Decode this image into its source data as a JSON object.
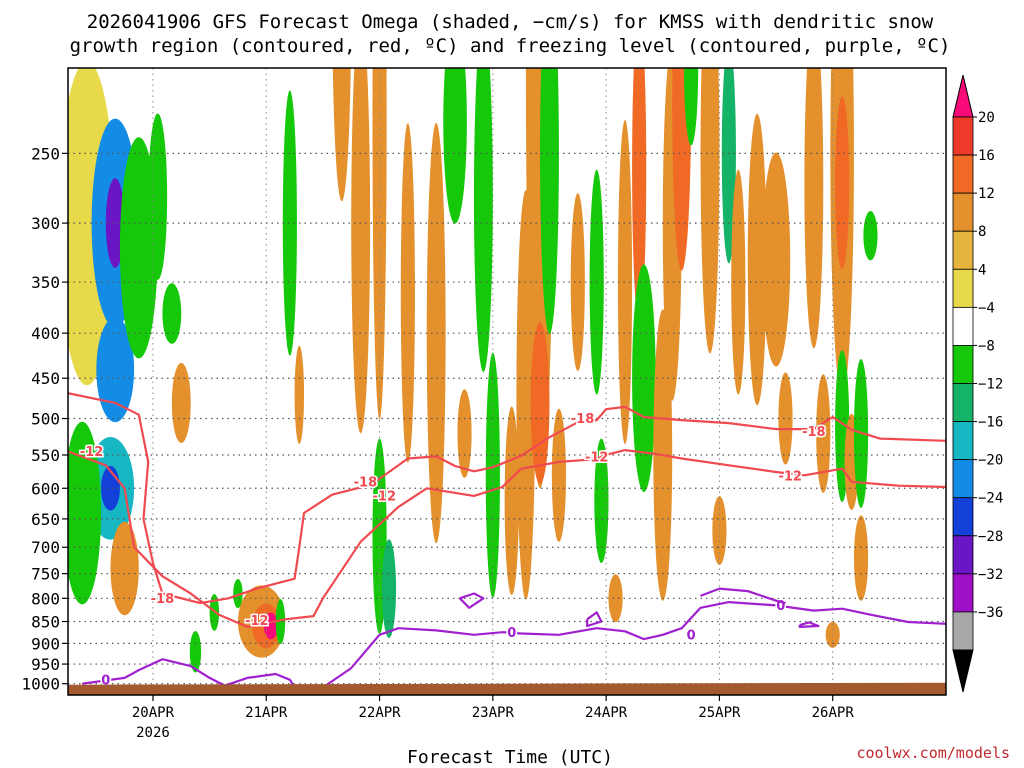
{
  "chart_data": {
    "type": "heatmap",
    "title_line1": "2026041906 GFS Forecast Omega (shaded, −cm/s) for KMSS with dendritic snow",
    "title_line2": "growth region (contoured, red, ºC) and freezing level (contoured, purple, ºC)",
    "xlabel": "Forecast Time (UTC)",
    "ylabel": "",
    "credit": "coolwx.com/models",
    "x_range_hours": [
      0,
      186
    ],
    "x_ticks": [
      {
        "label": "20APR",
        "sublabel": "2026",
        "hour": 18
      },
      {
        "label": "21APR",
        "hour": 42
      },
      {
        "label": "22APR",
        "hour": 66
      },
      {
        "label": "23APR",
        "hour": 90
      },
      {
        "label": "24APR",
        "hour": 114
      },
      {
        "label": "25APR",
        "hour": 138
      },
      {
        "label": "26APR",
        "hour": 162
      }
    ],
    "y_axis": {
      "units": "hPa",
      "top": 200,
      "bottom": 1030,
      "scale": "log",
      "ticks": [
        250,
        300,
        350,
        400,
        450,
        500,
        550,
        600,
        650,
        700,
        750,
        800,
        850,
        900,
        950,
        1000
      ]
    },
    "grid": true,
    "colorbar": {
      "labels": [
        "20",
        "16",
        "12",
        "8",
        "4",
        "−4",
        "−8",
        "−12",
        "−16",
        "−20",
        "−24",
        "−28",
        "−32",
        "−36"
      ],
      "colors": [
        "#fa0a78",
        "#ee3a2a",
        "#f06a26",
        "#e4912d",
        "#e4b43c",
        "#e8d94a",
        "#ffffff",
        "#15c80a",
        "#14b368",
        "#16b6c2",
        "#138ce6",
        "#1240d8",
        "#6a16c4",
        "#a010c8",
        "#a8a8a8",
        "#000000"
      ]
    },
    "red_contours": [
      {
        "label": "-18",
        "points": [
          [
            0,
            468
          ],
          [
            10,
            480
          ],
          [
            15,
            495
          ],
          [
            17,
            560
          ],
          [
            16,
            650
          ],
          [
            18,
            730
          ],
          [
            20,
            790
          ],
          [
            28,
            810
          ],
          [
            34,
            800
          ],
          [
            40,
            780
          ],
          [
            48,
            760
          ],
          [
            49,
            700
          ],
          [
            50,
            640
          ],
          [
            56,
            610
          ],
          [
            64,
            595
          ],
          [
            68,
            575
          ],
          [
            72,
            555
          ],
          [
            78,
            552
          ],
          [
            82,
            566
          ],
          [
            86,
            574
          ],
          [
            90,
            568
          ],
          [
            96,
            551
          ],
          [
            102,
            525
          ],
          [
            108,
            505
          ],
          [
            112,
            502
          ],
          [
            114,
            488
          ],
          [
            118,
            485
          ],
          [
            122,
            498
          ],
          [
            130,
            502
          ],
          [
            140,
            506
          ],
          [
            150,
            514
          ],
          [
            158,
            514
          ],
          [
            162,
            498
          ],
          [
            166,
            515
          ],
          [
            172,
            527
          ],
          [
            186,
            530
          ]
        ],
        "labels_at": [
          [
            20,
            800
          ],
          [
            63,
            590
          ],
          [
            109,
            500
          ],
          [
            158,
            517
          ]
        ]
      },
      {
        "label": "-12",
        "points": [
          [
            0,
            545
          ],
          [
            8,
            565
          ],
          [
            12,
            600
          ],
          [
            14,
            700
          ],
          [
            20,
            755
          ],
          [
            26,
            790
          ],
          [
            32,
            835
          ],
          [
            38,
            862
          ],
          [
            46,
            845
          ],
          [
            52,
            838
          ],
          [
            54,
            800
          ],
          [
            62,
            690
          ],
          [
            70,
            630
          ],
          [
            76,
            600
          ],
          [
            86,
            612
          ],
          [
            92,
            598
          ],
          [
            96,
            570
          ],
          [
            104,
            560
          ],
          [
            110,
            557
          ],
          [
            118,
            543
          ],
          [
            124,
            548
          ],
          [
            130,
            555
          ],
          [
            140,
            565
          ],
          [
            150,
            575
          ],
          [
            156,
            580
          ],
          [
            164,
            570
          ],
          [
            166,
            590
          ],
          [
            176,
            596
          ],
          [
            186,
            598
          ]
        ],
        "labels_at": [
          [
            5,
            545
          ],
          [
            40,
            848
          ],
          [
            67,
            612
          ],
          [
            112,
            553
          ],
          [
            153,
            581
          ]
        ]
      }
    ],
    "purple_contours": [
      {
        "label": "0",
        "points": [
          [
            3,
            1000
          ],
          [
            12,
            985
          ],
          [
            15,
            965
          ],
          [
            20,
            938
          ],
          [
            26,
            955
          ],
          [
            30,
            985
          ],
          [
            34,
            1010
          ]
        ],
        "labels_at": [
          [
            8,
            990
          ]
        ]
      },
      {
        "label": "0",
        "points": [
          [
            32,
            1010
          ],
          [
            38,
            985
          ],
          [
            44,
            975
          ],
          [
            47,
            990
          ],
          [
            48,
            1010
          ]
        ],
        "labels_at": []
      },
      {
        "label": "0",
        "points": [
          [
            54,
            1010
          ],
          [
            60,
            960
          ],
          [
            66,
            880
          ],
          [
            70,
            865
          ],
          [
            78,
            870
          ],
          [
            86,
            880
          ],
          [
            92,
            874
          ],
          [
            96,
            877
          ],
          [
            104,
            880
          ],
          [
            112,
            865
          ],
          [
            118,
            872
          ],
          [
            122,
            890
          ],
          [
            126,
            880
          ],
          [
            130,
            865
          ],
          [
            134,
            820
          ],
          [
            140,
            808
          ],
          [
            150,
            815
          ],
          [
            158,
            826
          ],
          [
            164,
            822
          ],
          [
            170,
            835
          ],
          [
            178,
            851
          ],
          [
            186,
            855
          ]
        ],
        "labels_at": [
          [
            94,
            875
          ],
          [
            132,
            880
          ],
          [
            151,
            815
          ]
        ]
      },
      {
        "label": "0",
        "points": [
          [
            134,
            795
          ],
          [
            138,
            780
          ],
          [
            144,
            785
          ],
          [
            150,
            805
          ],
          [
            152,
            810
          ]
        ],
        "labels_at": []
      },
      {
        "label": "0",
        "points": [
          [
            83,
            800
          ],
          [
            86,
            790
          ],
          [
            88,
            800
          ],
          [
            85,
            820
          ],
          [
            83,
            800
          ]
        ],
        "labels_at": []
      },
      {
        "label": "0",
        "points": [
          [
            110,
            845
          ],
          [
            112,
            830
          ],
          [
            113,
            850
          ],
          [
            110,
            860
          ],
          [
            110,
            845
          ]
        ],
        "labels_at": []
      },
      {
        "label": "0",
        "points": [
          [
            155,
            858
          ],
          [
            157,
            852
          ],
          [
            159,
            860
          ],
          [
            155,
            862
          ],
          [
            155,
            858
          ]
        ],
        "labels_at": []
      }
    ],
    "omega_blobs": [
      {
        "x": 4,
        "y": 300,
        "rx": 6,
        "ry": 120,
        "level": 6
      },
      {
        "x": 10,
        "y": 300,
        "rx": 5,
        "ry": 80,
        "level": 10
      },
      {
        "x": 10,
        "y": 300,
        "rx": 2,
        "ry": 35,
        "level": 12
      },
      {
        "x": 10,
        "y": 440,
        "rx": 4,
        "ry": 60,
        "level": 10
      },
      {
        "x": 9,
        "y": 600,
        "rx": 5,
        "ry": 80,
        "level": 9
      },
      {
        "x": 9,
        "y": 600,
        "rx": 2,
        "ry": 35,
        "level": 11
      },
      {
        "x": 3,
        "y": 640,
        "rx": 4,
        "ry": 150,
        "level": 7
      },
      {
        "x": 15,
        "y": 320,
        "rx": 4,
        "ry": 90,
        "level": 7
      },
      {
        "x": 19,
        "y": 280,
        "rx": 2,
        "ry": 60,
        "level": 7
      },
      {
        "x": 22,
        "y": 380,
        "rx": 2,
        "ry": 30,
        "level": 7
      },
      {
        "x": 24,
        "y": 480,
        "rx": 2,
        "ry": 50,
        "level": 4
      },
      {
        "x": 12,
        "y": 740,
        "rx": 3,
        "ry": 90,
        "level": 4
      },
      {
        "x": 41,
        "y": 850,
        "rx": 5,
        "ry": 80,
        "level": 4
      },
      {
        "x": 42,
        "y": 860,
        "rx": 3,
        "ry": 50,
        "level": 3
      },
      {
        "x": 43,
        "y": 860,
        "rx": 1.5,
        "ry": 30,
        "level": 1
      },
      {
        "x": 45,
        "y": 850,
        "rx": 1,
        "ry": 50,
        "level": 7
      },
      {
        "x": 27,
        "y": 920,
        "rx": 1.2,
        "ry": 50,
        "level": 7
      },
      {
        "x": 31,
        "y": 830,
        "rx": 1,
        "ry": 40,
        "level": 7
      },
      {
        "x": 36,
        "y": 790,
        "rx": 1,
        "ry": 30,
        "level": 7
      },
      {
        "x": 47,
        "y": 300,
        "rx": 1.5,
        "ry": 100,
        "level": 7
      },
      {
        "x": 49,
        "y": 470,
        "rx": 1,
        "ry": 60,
        "level": 4
      },
      {
        "x": 58,
        "y": 170,
        "rx": 2,
        "ry": 80,
        "level": 4
      },
      {
        "x": 62,
        "y": 300,
        "rx": 2,
        "ry": 150,
        "level": 4
      },
      {
        "x": 66,
        "y": 230,
        "rx": 1.5,
        "ry": 150,
        "level": 4
      },
      {
        "x": 66,
        "y": 680,
        "rx": 1.5,
        "ry": 170,
        "level": 7
      },
      {
        "x": 68,
        "y": 780,
        "rx": 1.5,
        "ry": 100,
        "level": 8
      },
      {
        "x": 72,
        "y": 360,
        "rx": 1.5,
        "ry": 150,
        "level": 4
      },
      {
        "x": 78,
        "y": 400,
        "rx": 2,
        "ry": 200,
        "level": 4
      },
      {
        "x": 82,
        "y": 230,
        "rx": 2.5,
        "ry": 60,
        "level": 7
      },
      {
        "x": 84,
        "y": 520,
        "rx": 1.5,
        "ry": 60,
        "level": 4
      },
      {
        "x": 88,
        "y": 280,
        "rx": 2,
        "ry": 120,
        "level": 7
      },
      {
        "x": 90,
        "y": 580,
        "rx": 1.5,
        "ry": 180,
        "level": 7
      },
      {
        "x": 94,
        "y": 620,
        "rx": 1.5,
        "ry": 150,
        "level": 4
      },
      {
        "x": 97,
        "y": 470,
        "rx": 2,
        "ry": 230,
        "level": 4
      },
      {
        "x": 100,
        "y": 200,
        "rx": 3,
        "ry": 160,
        "level": 4
      },
      {
        "x": 100,
        "y": 480,
        "rx": 2,
        "ry": 100,
        "level": 3
      },
      {
        "x": 102,
        "y": 250,
        "rx": 2,
        "ry": 110,
        "level": 7
      },
      {
        "x": 104,
        "y": 580,
        "rx": 1.5,
        "ry": 100,
        "level": 4
      },
      {
        "x": 108,
        "y": 350,
        "rx": 1.5,
        "ry": 80,
        "level": 4
      },
      {
        "x": 112,
        "y": 350,
        "rx": 1.5,
        "ry": 100,
        "level": 7
      },
      {
        "x": 113,
        "y": 620,
        "rx": 1.5,
        "ry": 100,
        "level": 7
      },
      {
        "x": 116,
        "y": 800,
        "rx": 1.5,
        "ry": 50,
        "level": 4
      },
      {
        "x": 118,
        "y": 350,
        "rx": 1.5,
        "ry": 140,
        "level": 4
      },
      {
        "x": 121,
        "y": 260,
        "rx": 1.5,
        "ry": 100,
        "level": 3
      },
      {
        "x": 122,
        "y": 450,
        "rx": 2.5,
        "ry": 130,
        "level": 7
      },
      {
        "x": 126,
        "y": 550,
        "rx": 2,
        "ry": 200,
        "level": 4
      },
      {
        "x": 128,
        "y": 300,
        "rx": 2,
        "ry": 130,
        "level": 4
      },
      {
        "x": 130,
        "y": 220,
        "rx": 2,
        "ry": 90,
        "level": 3
      },
      {
        "x": 132,
        "y": 200,
        "rx": 1.5,
        "ry": 40,
        "level": 7
      },
      {
        "x": 136,
        "y": 250,
        "rx": 2,
        "ry": 120,
        "level": 4
      },
      {
        "x": 138,
        "y": 670,
        "rx": 1.5,
        "ry": 60,
        "level": 4
      },
      {
        "x": 140,
        "y": 250,
        "rx": 1.5,
        "ry": 70,
        "level": 8
      },
      {
        "x": 142,
        "y": 350,
        "rx": 1.5,
        "ry": 100,
        "level": 4
      },
      {
        "x": 146,
        "y": 330,
        "rx": 2,
        "ry": 120,
        "level": 4
      },
      {
        "x": 150,
        "y": 330,
        "rx": 3,
        "ry": 90,
        "level": 4
      },
      {
        "x": 152,
        "y": 500,
        "rx": 1.5,
        "ry": 60,
        "level": 4
      },
      {
        "x": 158,
        "y": 270,
        "rx": 2,
        "ry": 110,
        "level": 4
      },
      {
        "x": 160,
        "y": 520,
        "rx": 1.5,
        "ry": 80,
        "level": 4
      },
      {
        "x": 164,
        "y": 250,
        "rx": 2.5,
        "ry": 140,
        "level": 4
      },
      {
        "x": 164,
        "y": 270,
        "rx": 1.5,
        "ry": 60,
        "level": 3
      },
      {
        "x": 164,
        "y": 510,
        "rx": 1.5,
        "ry": 100,
        "level": 7
      },
      {
        "x": 166,
        "y": 560,
        "rx": 1.5,
        "ry": 70,
        "level": 4
      },
      {
        "x": 168,
        "y": 520,
        "rx": 1.5,
        "ry": 100,
        "level": 7
      },
      {
        "x": 168,
        "y": 720,
        "rx": 1.5,
        "ry": 80,
        "level": 4
      },
      {
        "x": 170,
        "y": 310,
        "rx": 1.5,
        "ry": 20,
        "level": 7
      },
      {
        "x": 162,
        "y": 880,
        "rx": 1.5,
        "ry": 30,
        "level": 4
      }
    ]
  },
  "colors": {
    "omega_levels": [
      "#ffffff",
      "#fa0a78",
      "#ee3a2a",
      "#f06a26",
      "#e4912d",
      "#e4b43c",
      "#e8d94a",
      "#15c80a",
      "#14b368",
      "#16b6c2",
      "#138ce6",
      "#1240d8",
      "#6a16c4"
    ],
    "dsg_contour": "#f04a50",
    "freezing_contour": "#a020d0",
    "ground": "#a25a2e",
    "grid": "#555555"
  }
}
